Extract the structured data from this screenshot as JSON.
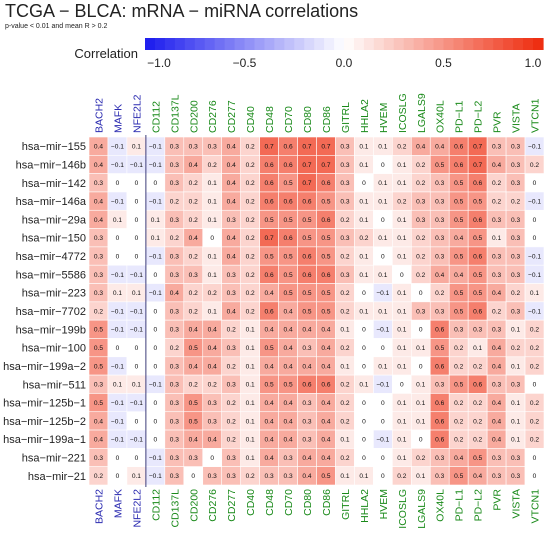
{
  "chart_data": {
    "type": "heatmap",
    "title": "TCGA − BLCA: mRNA − miRNA correlations",
    "subtitle": "p-value < 0.01 and mean R > 0.2",
    "legend": {
      "label": "Correlation",
      "min": -1.0,
      "max": 1.0,
      "ticks": [
        "−1.0",
        "−0.5",
        "0.0",
        "0.5",
        "1.0"
      ],
      "tick_values": [
        -1.0,
        -0.5,
        0.0,
        0.5,
        1.0
      ],
      "colors": {
        "negative": "#1a1aee",
        "zero": "#ffffff",
        "positive": "#ee2a0c"
      }
    },
    "columns": [
      "BACH2",
      "MAFK",
      "NFE2L2",
      "CD112",
      "CD137L",
      "CD200",
      "CD276",
      "CD277",
      "CD40",
      "CD48",
      "CD70",
      "CD80",
      "CD86",
      "GITRL",
      "HHLA2",
      "HVEM",
      "ICOSLG",
      "LGALS9",
      "OX40L",
      "PD−L1",
      "PD−L2",
      "PVR",
      "VISTA",
      "VTCN1"
    ],
    "column_colors": [
      "#2b2bb0",
      "#2b2bb0",
      "#2b2bb0",
      "#1a8a1a",
      "#1a8a1a",
      "#1a8a1a",
      "#1a8a1a",
      "#1a8a1a",
      "#1a8a1a",
      "#1a8a1a",
      "#1a8a1a",
      "#1a8a1a",
      "#1a8a1a",
      "#1a8a1a",
      "#1a8a1a",
      "#1a8a1a",
      "#1a8a1a",
      "#1a8a1a",
      "#1a8a1a",
      "#1a8a1a",
      "#1a8a1a",
      "#1a8a1a",
      "#1a8a1a",
      "#1a8a1a"
    ],
    "rows": [
      "hsa−mir−155",
      "hsa−mir−146b",
      "hsa−mir−142",
      "hsa−mir−146a",
      "hsa−mir−29a",
      "hsa−mir−150",
      "hsa−mir−4772",
      "hsa−mir−5586",
      "hsa−mir−223",
      "hsa−mir−7702",
      "hsa−mir−199b",
      "hsa−mir−100",
      "hsa−mir−199a−2",
      "hsa−mir−511",
      "hsa−mir−125b−1",
      "hsa−mir−125b−2",
      "hsa−mir−199a−1",
      "hsa−mir−221",
      "hsa−mir−21"
    ],
    "values": [
      [
        0.4,
        -0.1,
        0.1,
        -0.1,
        0.3,
        0.3,
        0.3,
        0.4,
        0.2,
        0.7,
        0.6,
        0.7,
        0.7,
        0.3,
        0.1,
        0.1,
        0.2,
        0.4,
        0.4,
        0.6,
        0.7,
        0.3,
        0.3,
        -0.1
      ],
      [
        0.4,
        -0.1,
        -0.1,
        -0.1,
        0.3,
        0.4,
        0.2,
        0.4,
        0.2,
        0.6,
        0.6,
        0.7,
        0.7,
        0.3,
        0.1,
        0,
        0.1,
        0.2,
        0.5,
        0.6,
        0.7,
        0.4,
        0.3,
        0.2
      ],
      [
        0.3,
        0,
        0,
        0,
        0.3,
        0.2,
        0.1,
        0.4,
        0.2,
        0.6,
        0.5,
        0.7,
        0.6,
        0.3,
        0,
        0.1,
        0.1,
        0.2,
        0.3,
        0.5,
        0.6,
        0.2,
        0.3,
        0
      ],
      [
        0.4,
        -0.1,
        0,
        -0.1,
        0.2,
        0.2,
        0.1,
        0.4,
        0.2,
        0.6,
        0.6,
        0.6,
        0.5,
        0.3,
        0.1,
        0.1,
        0.2,
        0.3,
        0.3,
        0.5,
        0.5,
        0.2,
        0.2,
        -0.1
      ],
      [
        0.4,
        0.1,
        0,
        0.1,
        0.3,
        0.2,
        0.1,
        0.3,
        0.2,
        0.5,
        0.5,
        0.5,
        0.6,
        0.2,
        0.1,
        0,
        0.1,
        0.3,
        0.3,
        0.5,
        0.6,
        0.3,
        0.3,
        0
      ],
      [
        0.3,
        0,
        0,
        0.1,
        0.2,
        0.4,
        0,
        0.4,
        0.2,
        0.7,
        0.6,
        0.5,
        0.5,
        0.3,
        0.2,
        0.1,
        0.1,
        0.2,
        0.3,
        0.4,
        0.5,
        0.1,
        0.3,
        0
      ],
      [
        0.3,
        0,
        0,
        -0.1,
        0.3,
        0.2,
        0.1,
        0.4,
        0.2,
        0.5,
        0.5,
        0.6,
        0.5,
        0.2,
        0.1,
        0,
        0.1,
        0.2,
        0.3,
        0.5,
        0.6,
        0.3,
        0.3,
        -0.1
      ],
      [
        0.3,
        -0.1,
        -0.1,
        0,
        0.3,
        0.3,
        0.1,
        0.3,
        0.2,
        0.6,
        0.5,
        0.6,
        0.6,
        0.3,
        0.1,
        0.1,
        0,
        0.2,
        0.4,
        0.4,
        0.5,
        0.3,
        0.3,
        -0.1
      ],
      [
        0.3,
        0.1,
        0.1,
        -0.1,
        0.4,
        0.2,
        0.2,
        0.3,
        0.2,
        0.4,
        0.5,
        0.5,
        0.5,
        0.2,
        0,
        -0.1,
        0.1,
        0,
        0.2,
        0.5,
        0.5,
        0.4,
        0.2,
        0.1
      ],
      [
        0.2,
        -0.1,
        -0.1,
        0,
        0.3,
        0.2,
        0.1,
        0.4,
        0.2,
        0.6,
        0.4,
        0.5,
        0.5,
        0.2,
        0.1,
        0.1,
        0.1,
        0.3,
        0.3,
        0.5,
        0.6,
        0.2,
        0.3,
        -0.1
      ],
      [
        0.5,
        -0.1,
        -0.1,
        0,
        0.3,
        0.4,
        0.4,
        0.2,
        0.1,
        0.4,
        0.4,
        0.4,
        0.4,
        0.1,
        0,
        -0.1,
        0.1,
        0,
        0.6,
        0.3,
        0.3,
        0.3,
        0.1,
        0.2
      ],
      [
        0.5,
        0,
        0,
        0,
        0.2,
        0.5,
        0.4,
        0.3,
        0.1,
        0.5,
        0.4,
        0.3,
        0.4,
        0.2,
        0,
        0,
        0.1,
        0.1,
        0.5,
        0.2,
        0.1,
        0.4,
        0.2,
        0.2
      ],
      [
        0.5,
        -0.1,
        0,
        0,
        0.3,
        0.4,
        0.4,
        0.2,
        0.1,
        0.4,
        0.4,
        0.4,
        0.4,
        0.1,
        0,
        0.1,
        0.1,
        0,
        0.6,
        0.2,
        0.2,
        0.4,
        0.1,
        0.2
      ],
      [
        0.3,
        0.1,
        0.1,
        -0.1,
        0.3,
        0.2,
        0.2,
        0.3,
        0.1,
        0.5,
        0.5,
        0.6,
        0.6,
        0.2,
        0.1,
        -0.1,
        0,
        0.1,
        0.3,
        0.5,
        0.6,
        0.3,
        0.3,
        0
      ],
      [
        0.5,
        -0.1,
        -0.1,
        0,
        0.3,
        0.5,
        0.3,
        0.2,
        0.1,
        0.4,
        0.4,
        0.3,
        0.4,
        0.2,
        0,
        0,
        0.1,
        0.1,
        0.6,
        0.2,
        0.2,
        0.4,
        0.1,
        0.2
      ],
      [
        0.4,
        -0.1,
        0,
        0,
        0.3,
        0.5,
        0.3,
        0.2,
        0.1,
        0.4,
        0.4,
        0.3,
        0.4,
        0.2,
        0,
        0,
        0.1,
        0.1,
        0.6,
        0.2,
        0.2,
        0.4,
        0.1,
        0.2
      ],
      [
        0.4,
        -0.1,
        -0.1,
        0,
        0.3,
        0.4,
        0.4,
        0.2,
        0.1,
        0.4,
        0.4,
        0.3,
        0.4,
        0.1,
        0,
        -0.1,
        0.1,
        0,
        0.6,
        0.2,
        0.2,
        0.4,
        0.1,
        0.2
      ],
      [
        0.3,
        0,
        0,
        -0.1,
        0.3,
        0.3,
        0,
        0.3,
        0.1,
        0.4,
        0.3,
        0.4,
        0.4,
        0.2,
        0,
        0,
        0.1,
        0.2,
        0.3,
        0.4,
        0.5,
        0.3,
        0.3,
        0
      ],
      [
        0.2,
        0,
        0.1,
        -0.1,
        0.3,
        0,
        0.3,
        0.3,
        0.2,
        0.3,
        0.3,
        0.4,
        0.5,
        0.1,
        0.1,
        0,
        0.2,
        0.1,
        0.3,
        0.5,
        0.4,
        0.3,
        0.3,
        0
      ]
    ]
  }
}
